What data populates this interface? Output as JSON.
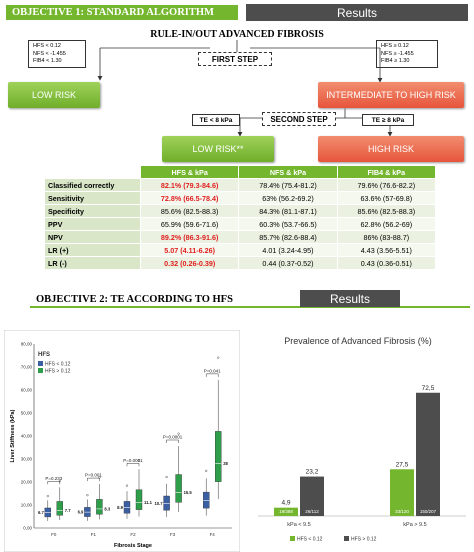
{
  "obj1": {
    "header": "OBJECTIVE 1: STANDARD ALGORITHM",
    "results_label": "Results",
    "title": "RULE-IN/OUT ADVANCED FIBROSIS",
    "low_criteria": [
      "HFS < 0.12",
      "NFS < -1.455",
      "FIB4 < 1.30"
    ],
    "high_criteria": [
      "HFS ≥ 0.12",
      "NFS ≥ -1.455",
      "FIB4 ≥ 1.30"
    ],
    "first_step": "FIRST STEP",
    "second_step": "SECOND STEP",
    "low_risk": "LOW RISK",
    "intermediate_risk": "INTERMEDIATE TO HIGH RISK",
    "te_low": "TE < 8 kPa",
    "te_high": "TE ≥ 8 kPa",
    "low_risk2": "LOW RISK**",
    "high_risk": "HIGH RISK",
    "table": {
      "headers": [
        "HFS & kPa",
        "NFS & kPa",
        "FIB4 & kPa"
      ],
      "rows": [
        {
          "label": "Classified correctly",
          "values": [
            "82.1% (79.3-84.6)",
            "78.4% (75.4-81.2)",
            "79.6% (76.6-82.2)"
          ]
        },
        {
          "label": "Sensitivity",
          "values": [
            "72.8% (66.5-78.4)",
            "63% (56.2-69.2)",
            "63.6% (57-69.8)"
          ]
        },
        {
          "label": "Specificity",
          "values": [
            "85.6% (82.5-88.3)",
            "84.3% (81.1-87.1)",
            "85.6% (82.5-88.3)"
          ]
        },
        {
          "label": "PPV",
          "values": [
            "65.9% (59.6-71.6)",
            "60.3% (53.7-66.5)",
            "62.8% (56.2-69)"
          ]
        },
        {
          "label": "NPV",
          "values": [
            "89.2% (86.3-91.6)",
            "85.7% (82.6-88.4)",
            "86% (83-88.7)"
          ]
        },
        {
          "label": "LR (+)",
          "values": [
            "5.07 (4.11-6.26)",
            "4.01 (3.24-4.95)",
            "4.43 (3.56-5.51)"
          ]
        },
        {
          "label": "LR (-)",
          "values": [
            "0.32 (0.26-0.39)",
            "0.44 (0.37-0.52)",
            "0.43 (0.36-0.51)"
          ]
        }
      ],
      "red_cells": [
        [
          0,
          0
        ],
        [
          1,
          0
        ],
        [
          4,
          0
        ],
        [
          5,
          0
        ],
        [
          6,
          0
        ]
      ]
    }
  },
  "obj2": {
    "header": "OBJECTIVE 2: TE ACCORDING TO HFS",
    "results_label": "Results",
    "colors": {
      "green": "#74b72e",
      "dark": "#4d4d4d",
      "box_blue": "#3b5fa3",
      "box_green": "#2e9e4a"
    }
  },
  "chart_data": [
    {
      "type": "box",
      "title": "",
      "legend_title": "HFS",
      "legend": [
        "HFS < 0.12",
        "HFS > 0.12"
      ],
      "xlabel": "Fibrosis Stage",
      "ylabel": "Liver Stiffness (kPa)",
      "categories": [
        "F0",
        "F1",
        "F2",
        "F3",
        "F4"
      ],
      "y_ticks": [
        "0,00",
        "10,00",
        "20,00",
        "30,00",
        "40,00",
        "50,00",
        "60,00",
        "70,00",
        "80,00"
      ],
      "ylim": [
        0,
        80
      ],
      "series": [
        {
          "name": "HFS < 0.12",
          "medians": [
            6.7,
            6.9,
            8.9,
            10.7,
            12.0
          ]
        },
        {
          "name": "HFS > 0.12",
          "medians": [
            7.7,
            8.3,
            11.1,
            15.5,
            28
          ]
        }
      ],
      "median_labels": [
        [
          "6.7",
          "7.7"
        ],
        [
          "6.9",
          "8.3"
        ],
        [
          "8.9",
          "11.1"
        ],
        [
          "10.7",
          "15.5"
        ],
        [
          "",
          "28"
        ]
      ],
      "p_values": [
        "P=0.233",
        "P=0.001",
        "P=0.0001",
        "P=0.0001",
        "P=0.041"
      ]
    },
    {
      "type": "bar",
      "title": "Prevalence of Advanced Fibrosis (%)",
      "categories": [
        "kPa < 9.5",
        "kPa > 9.5"
      ],
      "legend": [
        "HFS < 0.12",
        "HFS > 0.12"
      ],
      "series": [
        {
          "name": "HFS < 0.12",
          "values": [
            4.9,
            27.5
          ],
          "labels": [
            "4,9",
            "27,5"
          ],
          "counts": [
            "19/388",
            "33/120"
          ]
        },
        {
          "name": "HFS > 0.12",
          "values": [
            23.2,
            72.5
          ],
          "labels": [
            "23,2",
            "72,5"
          ],
          "counts": [
            "26/112",
            "150/207"
          ]
        }
      ],
      "ylim": [
        0,
        80
      ]
    }
  ]
}
